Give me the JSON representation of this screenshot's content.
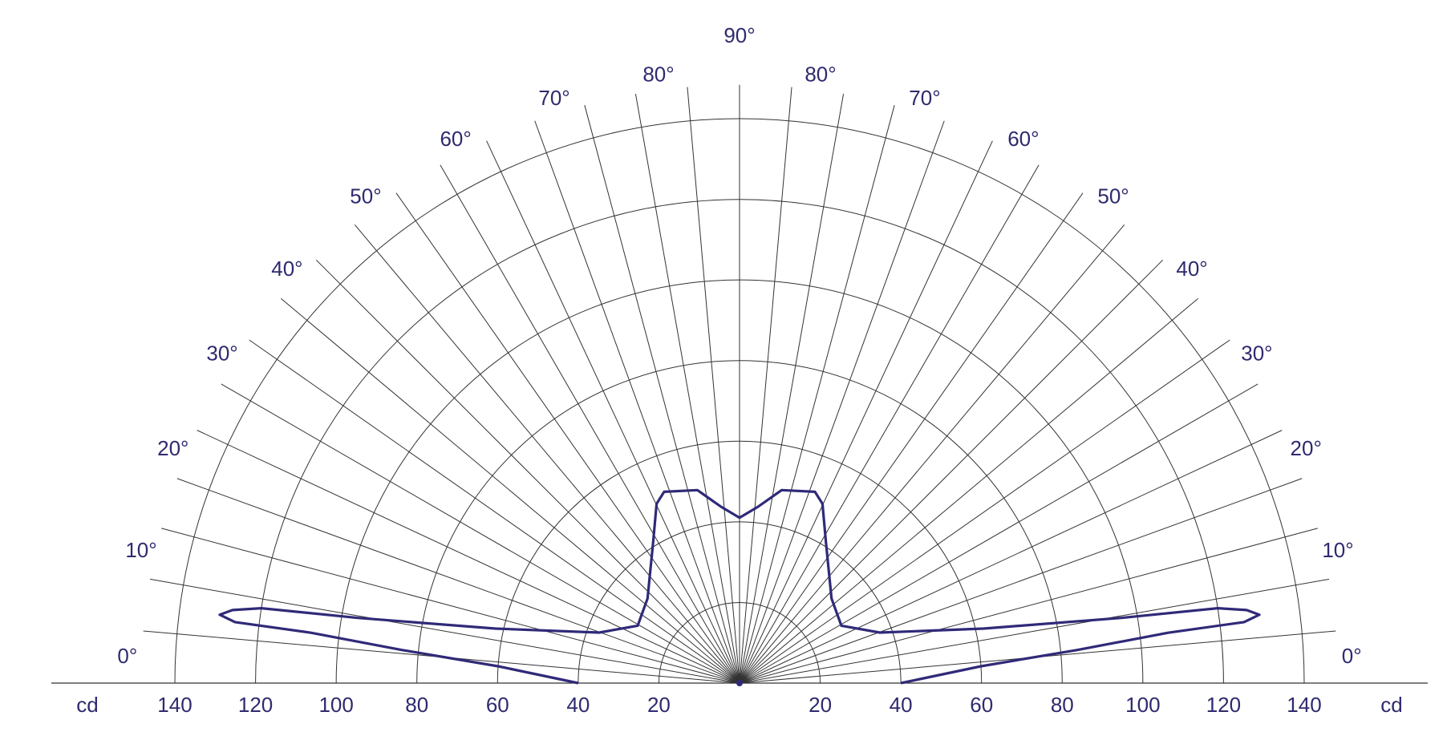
{
  "chart_data": {
    "type": "polar",
    "x": [
      0,
      4,
      5.6,
      6.7,
      6.9,
      7.5,
      8.2,
      8.9,
      9.7,
      12.6,
      19.8,
      29.4,
      42.6,
      58.5,
      65.2,
      68.5,
      77.7,
      84,
      90
    ],
    "values": [
      40,
      60,
      84,
      107,
      126,
      130,
      127,
      120,
      96,
      62,
      37,
      29,
      31,
      41,
      49,
      51,
      49,
      44,
      41
    ],
    "color": "#2f2a78",
    "mirror": true,
    "xlim": [
      0,
      90
    ],
    "xticks": [
      {
        "value": 0,
        "label": "0°"
      },
      {
        "value": 10,
        "label": "10°"
      },
      {
        "value": 20,
        "label": "20°"
      },
      {
        "value": 30,
        "label": "30°"
      },
      {
        "value": 40,
        "label": "40°"
      },
      {
        "value": 50,
        "label": "50°"
      },
      {
        "value": 60,
        "label": "60°"
      },
      {
        "value": 70,
        "label": "70°"
      },
      {
        "value": 80,
        "label": "80°"
      },
      {
        "value": 90,
        "label": "90°"
      }
    ],
    "rlim": [
      0,
      140
    ],
    "rticks": [
      20,
      40,
      60,
      80,
      100,
      120,
      140
    ],
    "r_label": "cd",
    "grid": true
  }
}
